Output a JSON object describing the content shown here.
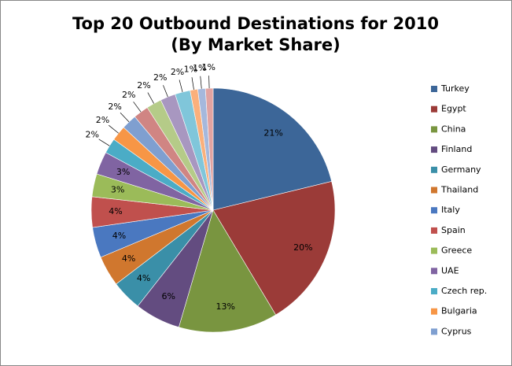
{
  "chart_data": {
    "type": "pie",
    "title": "Top 20 Outbound Destinations for 2010",
    "subtitle": "(By Market Share)",
    "categories": [
      "Turkey",
      "Egypt",
      "China",
      "Finland",
      "Germany",
      "Thailand",
      "Italy",
      "Spain",
      "Greece",
      "UAE",
      "Czech rep.",
      "Bulgaria",
      "Cyprus",
      null,
      null,
      null,
      null,
      null,
      null,
      null
    ],
    "values": [
      21,
      20,
      13,
      6,
      4,
      4,
      4,
      4,
      3,
      3,
      2,
      2,
      2,
      2,
      2,
      2,
      2,
      1,
      1,
      1
    ],
    "value_labels": [
      "21%",
      "20%",
      "13%",
      "6%",
      "4%",
      "4%",
      "4%",
      "4%",
      "3%",
      "3%",
      "2%",
      "2%",
      "2%",
      "2%",
      "2%",
      "2%",
      "2%",
      "1%",
      "1%",
      "1%"
    ],
    "colors": [
      "#3c6698",
      "#9b3b38",
      "#799540",
      "#634c80",
      "#3a8fa8",
      "#d0772e",
      "#4a78c0",
      "#c0504d",
      "#9bbb59",
      "#8064a2",
      "#4bacc6",
      "#f79646",
      "#7f9fd0",
      "#d08583",
      "#b5cb88",
      "#a897c0",
      "#80c6da",
      "#fab07c",
      "#a5b8dc",
      "#e1a3a1"
    ],
    "legend": "right"
  }
}
